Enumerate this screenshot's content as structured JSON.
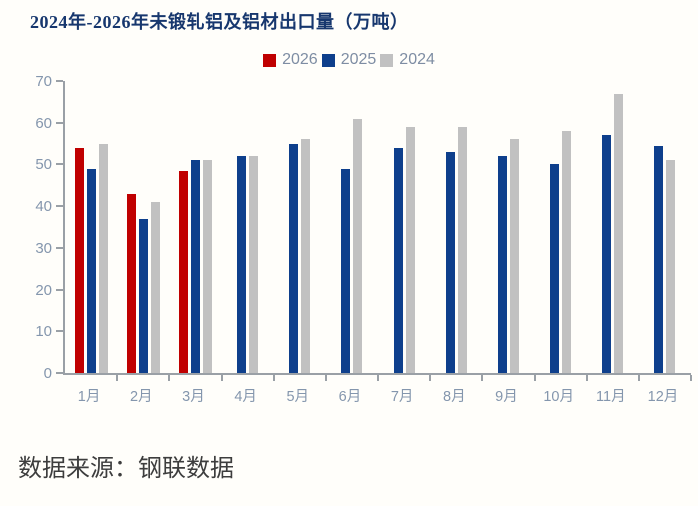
{
  "title": "2024年-2026年未锻轧铝及铝材出口量（万吨）",
  "source": "数据来源：钢联数据",
  "legend": {
    "items": [
      {
        "label": "2026",
        "color": "#c00000"
      },
      {
        "label": "2025",
        "color": "#0e3f8c"
      },
      {
        "label": "2024",
        "color": "#c1c1c1"
      }
    ],
    "position": "top-center"
  },
  "colors": {
    "series_2026_red": "#c00000",
    "series_2025_blue": "#0e3f8c",
    "series_2024_gray": "#c1c1c1",
    "title_text": "#17376e",
    "axis_line": "#9aa0a6",
    "axis_text": "#8496ad",
    "legend_text": "#7e8da3",
    "source_text": "#3d3d3d",
    "background": "#fffefa"
  },
  "chart_data": {
    "type": "bar",
    "title": "2024年-2026年未锻轧铝及铝材出口量（万吨）",
    "categories": [
      "1月",
      "2月",
      "3月",
      "4月",
      "5月",
      "6月",
      "7月",
      "8月",
      "9月",
      "10月",
      "11月",
      "12月"
    ],
    "series": [
      {
        "name": "2026",
        "color": "#c00000",
        "values": [
          54,
          43,
          48.5,
          null,
          null,
          null,
          null,
          null,
          null,
          null,
          null,
          null
        ]
      },
      {
        "name": "2025",
        "color": "#0e3f8c",
        "values": [
          49,
          37,
          51,
          52,
          55,
          49,
          54,
          53,
          52,
          50,
          57,
          54.5
        ]
      },
      {
        "name": "2024",
        "color": "#c1c1c1",
        "values": [
          55,
          41,
          51,
          52,
          56,
          61,
          59,
          59,
          56,
          58,
          67,
          51
        ]
      }
    ],
    "xlabel": "",
    "ylabel": "",
    "ylim": [
      0,
      70
    ],
    "ytick_step": 10,
    "grid": false,
    "legend_position": "top-center"
  }
}
